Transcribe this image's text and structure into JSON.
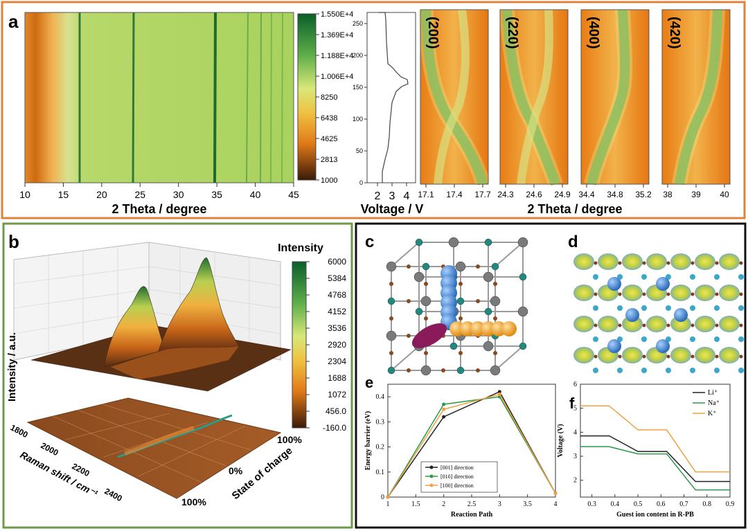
{
  "panel_a": {
    "letter": "a",
    "main_x_ticks": [
      "10",
      "15",
      "20",
      "25",
      "30",
      "35",
      "40",
      "45"
    ],
    "main_x_label": "2 Theta  / degree",
    "colorbar_ticks": [
      "1.550E+4",
      "1.369E+4",
      "1.188E+4",
      "1.006E+4",
      "8250",
      "6438",
      "4625",
      "2813",
      "1000"
    ],
    "voltage_y_ticks": [
      "250",
      "200",
      "150",
      "100",
      "50",
      "0"
    ],
    "voltage_x_ticks": [
      "2",
      "3",
      "4"
    ],
    "voltage_x_label": "Voltage  / V",
    "zoom_panels": [
      {
        "label": "(200)",
        "ticks": [
          "17.1",
          "17.4",
          "17.7"
        ]
      },
      {
        "label": "(220)",
        "ticks": [
          "24.3",
          "24.6",
          "24.9"
        ]
      },
      {
        "label": "(400)",
        "ticks": [
          "34.4",
          "34.8",
          "35.2"
        ]
      },
      {
        "label": "(420)",
        "ticks": [
          "38",
          "39",
          "40"
        ]
      }
    ],
    "zoom_x_label": "2 Theta  / degree"
  },
  "panel_b": {
    "letter": "b",
    "z_label": "Intensity / a.u.",
    "colorbar_title": "Intensity",
    "colorbar_ticks": [
      "6000",
      "5384",
      "4768",
      "4152",
      "3536",
      "2920",
      "2304",
      "1688",
      "1072",
      "456.0",
      "-160.0"
    ],
    "raman_ticks": [
      "1800",
      "2000",
      "2200",
      "2400"
    ],
    "raman_label": "Raman shift / cm⁻¹",
    "soc_ticks": [
      "100%",
      "0%",
      "100%"
    ],
    "soc_label": "State of charge"
  },
  "panel_c": {
    "letter": "c"
  },
  "panel_d": {
    "letter": "d"
  },
  "panel_e": {
    "letter": "e",
    "chart_data": {
      "type": "line",
      "x": [
        1,
        2,
        3,
        4
      ],
      "xlabel": "Reaction Path",
      "ylabel": "Energy barrier (eV)",
      "xlim": [
        1,
        4
      ],
      "ylim": [
        0,
        0.45
      ],
      "x_ticks": [
        "1",
        "1.5",
        "2",
        "2.5",
        "3",
        "3.5",
        "4"
      ],
      "y_ticks": [
        "0",
        "0.1",
        "0.2",
        "0.3",
        "0.4"
      ],
      "series": [
        {
          "name": "[001] direction",
          "color": "#222222",
          "values": [
            0,
            0.32,
            0.42,
            0.015
          ]
        },
        {
          "name": "[010] direction",
          "color": "#2a9a4a",
          "values": [
            0,
            0.37,
            0.4,
            0.015
          ]
        },
        {
          "name": "[100] direction",
          "color": "#f0a040",
          "values": [
            0,
            0.35,
            0.41,
            0.015
          ]
        }
      ]
    }
  },
  "panel_f": {
    "letter": "f",
    "chart_data": {
      "type": "line",
      "xlabel": "Guest ion content in R-PB",
      "ylabel": "Voltage (V)",
      "xlim": [
        0.25,
        0.9
      ],
      "ylim": [
        1.3,
        6
      ],
      "x_ticks": [
        "0.3",
        "0.4",
        "0.5",
        "0.6",
        "0.7",
        "0.8",
        "0.9"
      ],
      "y_ticks": [
        "2",
        "3",
        "4",
        "5",
        "6"
      ],
      "series": [
        {
          "name": "Li⁺",
          "color": "#222222",
          "x": [
            0.25,
            0.375,
            0.5,
            0.625,
            0.75,
            0.9
          ],
          "values": [
            3.85,
            3.85,
            3.2,
            3.2,
            1.95,
            1.95
          ]
        },
        {
          "name": "Na⁺",
          "color": "#2a9a4a",
          "x": [
            0.25,
            0.375,
            0.5,
            0.625,
            0.75,
            0.9
          ],
          "values": [
            3.4,
            3.4,
            3.1,
            3.1,
            1.6,
            1.6
          ]
        },
        {
          "name": "K⁺",
          "color": "#f0a040",
          "x": [
            0.25,
            0.375,
            0.5,
            0.625,
            0.75,
            0.9
          ],
          "values": [
            5.1,
            5.1,
            4.1,
            4.1,
            2.35,
            2.35
          ]
        }
      ]
    }
  }
}
